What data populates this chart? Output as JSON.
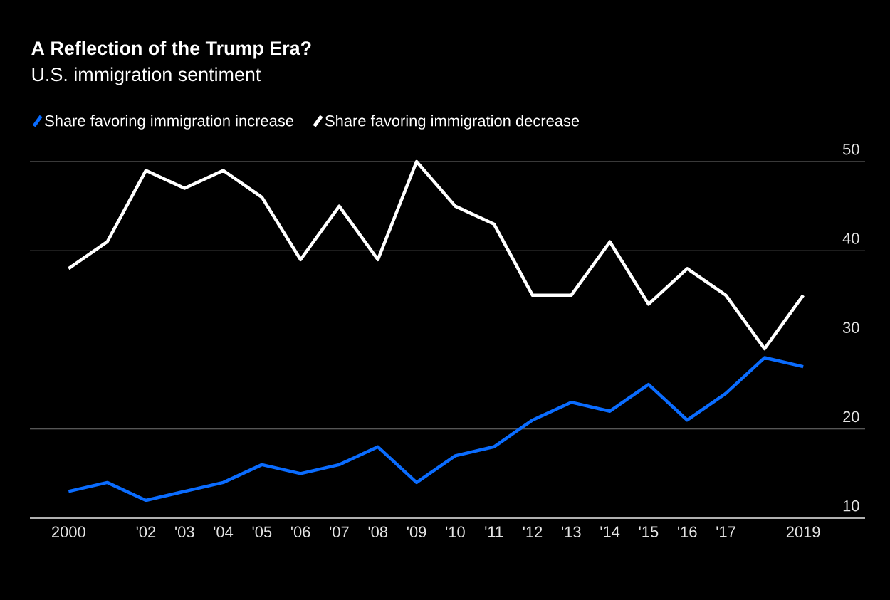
{
  "chart_data": {
    "type": "line",
    "title": "A Reflection of the Trump Era?",
    "subtitle": "U.S. immigration sentiment",
    "x": [
      2000,
      2001,
      2002,
      2003,
      2004,
      2005,
      2006,
      2007,
      2008,
      2009,
      2010,
      2011,
      2012,
      2013,
      2014,
      2015,
      2016,
      2017,
      2018,
      2019
    ],
    "series": [
      {
        "name": "Share favoring immigration increase",
        "color": "#0a6cff",
        "values": [
          13,
          14,
          12,
          13,
          14,
          16,
          15,
          16,
          18,
          14,
          17,
          18,
          21,
          23,
          22,
          25,
          21,
          24,
          28,
          27
        ]
      },
      {
        "name": "Share favoring immigration decrease",
        "color": "#ffffff",
        "values": [
          38,
          41,
          49,
          47,
          49,
          46,
          39,
          45,
          39,
          50,
          45,
          43,
          35,
          35,
          41,
          34,
          38,
          35,
          29,
          35
        ]
      }
    ],
    "xlim": [
      1999,
      2020.6
    ],
    "ylim": [
      10,
      50
    ],
    "xticks": [
      {
        "value": 2000,
        "label": "2000"
      },
      {
        "value": 2002,
        "label": "'02"
      },
      {
        "value": 2003,
        "label": "'03"
      },
      {
        "value": 2004,
        "label": "'04"
      },
      {
        "value": 2005,
        "label": "'05"
      },
      {
        "value": 2006,
        "label": "'06"
      },
      {
        "value": 2007,
        "label": "'07"
      },
      {
        "value": 2008,
        "label": "'08"
      },
      {
        "value": 2009,
        "label": "'09"
      },
      {
        "value": 2010,
        "label": "'10"
      },
      {
        "value": 2011,
        "label": "'11"
      },
      {
        "value": 2012,
        "label": "'12"
      },
      {
        "value": 2013,
        "label": "'13"
      },
      {
        "value": 2014,
        "label": "'14"
      },
      {
        "value": 2015,
        "label": "'15"
      },
      {
        "value": 2016,
        "label": "'16"
      },
      {
        "value": 2017,
        "label": "'17"
      },
      {
        "value": 2019,
        "label": "2019"
      }
    ],
    "yticks": [
      10,
      20,
      30,
      40,
      50
    ],
    "grid": "y",
    "legend": "top left",
    "marker": "none",
    "line_style": "solid"
  }
}
